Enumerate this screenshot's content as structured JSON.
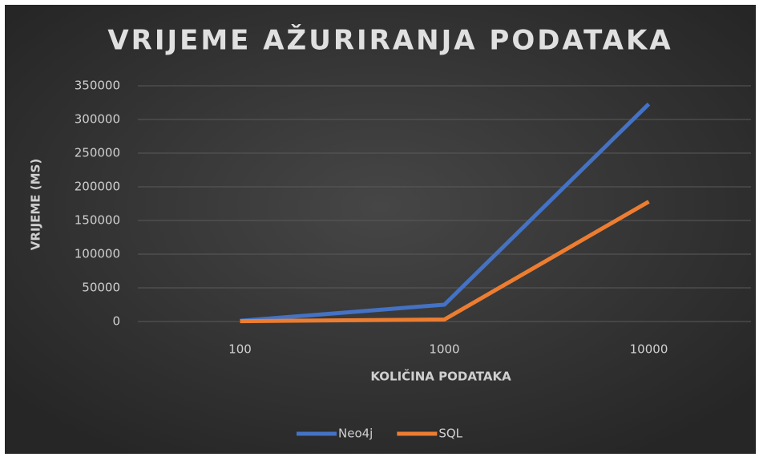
{
  "chart_data": {
    "type": "line",
    "title": "VRIJEME AŽURIRANJA PODATAKA",
    "x_label": "KOLIČINA PODATAKA",
    "y_label": "VRIJEME (MS)",
    "categories": [
      "100",
      "1000",
      "10000"
    ],
    "series": [
      {
        "name": "Neo4j",
        "color": "#4472c4",
        "values": [
          1000,
          25000,
          323000
        ]
      },
      {
        "name": "SQL",
        "color": "#ed7d31",
        "values": [
          500,
          3000,
          178000
        ]
      }
    ],
    "ylim": [
      0,
      350000
    ],
    "yticks": [
      0,
      50000,
      100000,
      150000,
      200000,
      250000,
      300000,
      350000
    ],
    "grid": true,
    "legend": "bottom"
  }
}
